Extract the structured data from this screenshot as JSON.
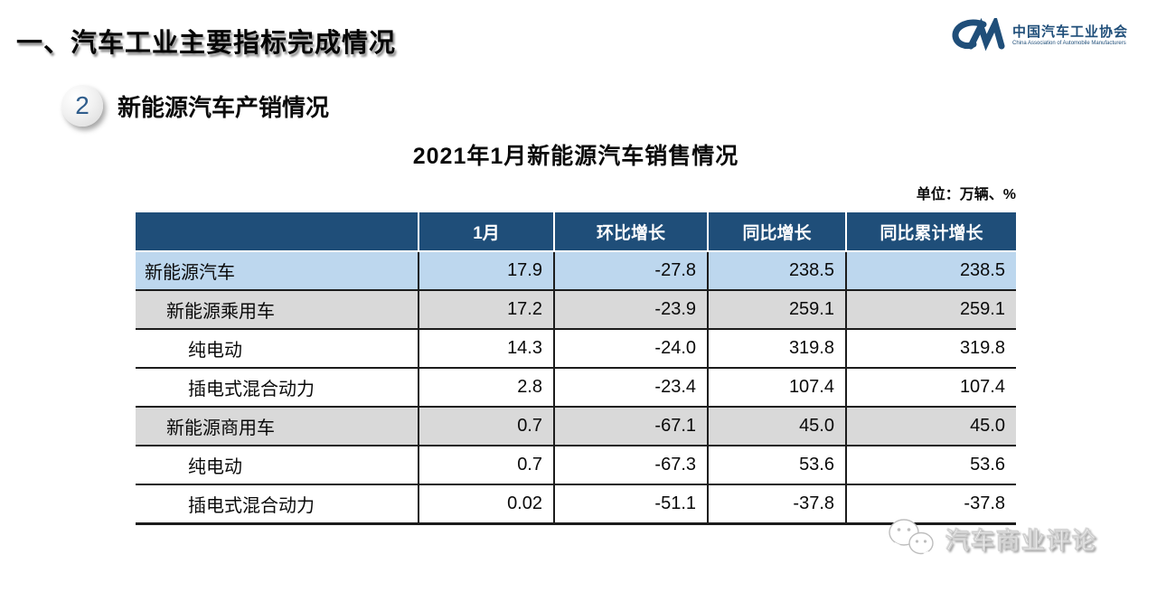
{
  "page_title": "一、汽车工业主要指标完成情况",
  "logo": {
    "org_cn": "中国汽车工业协会",
    "org_en": "China Association of Automobile Manufacturers",
    "color": "#1f4e79"
  },
  "section": {
    "number": "2",
    "title": "新能源汽车产销情况"
  },
  "table_title": "2021年1月新能源汽车销售情况",
  "unit_note": "单位：万辆、%",
  "table": {
    "columns": [
      "",
      "1月",
      "环比增长",
      "同比增长",
      "同比累计增长"
    ],
    "rows": [
      {
        "label": "新能源汽车",
        "indent": 0,
        "style": "highlight-blue",
        "values": [
          "17.9",
          "-27.8",
          "238.5",
          "238.5"
        ]
      },
      {
        "label": "新能源乘用车",
        "indent": 1,
        "style": "highlight-gray",
        "values": [
          "17.2",
          "-23.9",
          "259.1",
          "259.1"
        ]
      },
      {
        "label": "纯电动",
        "indent": 2,
        "style": "plain",
        "values": [
          "14.3",
          "-24.0",
          "319.8",
          "319.8"
        ]
      },
      {
        "label": "插电式混合动力",
        "indent": 2,
        "style": "plain",
        "values": [
          "2.8",
          "-23.4",
          "107.4",
          "107.4"
        ]
      },
      {
        "label": "新能源商用车",
        "indent": 1,
        "style": "highlight-gray",
        "values": [
          "0.7",
          "-67.1",
          "45.0",
          "45.0"
        ]
      },
      {
        "label": "纯电动",
        "indent": 2,
        "style": "plain",
        "values": [
          "0.7",
          "-67.3",
          "53.6",
          "53.6"
        ]
      },
      {
        "label": "插电式混合动力",
        "indent": 2,
        "style": "plain",
        "values": [
          "0.02",
          "-51.1",
          "-37.8",
          "-37.8"
        ]
      }
    ]
  },
  "watermark": {
    "text": "汽车商业评论",
    "icon": "wechat-icon"
  },
  "colors": {
    "header_blue": "#1f4e79",
    "row_blue": "#bdd7ee",
    "row_gray": "#d9d9d9",
    "logo_blue": "#1f4e79"
  }
}
